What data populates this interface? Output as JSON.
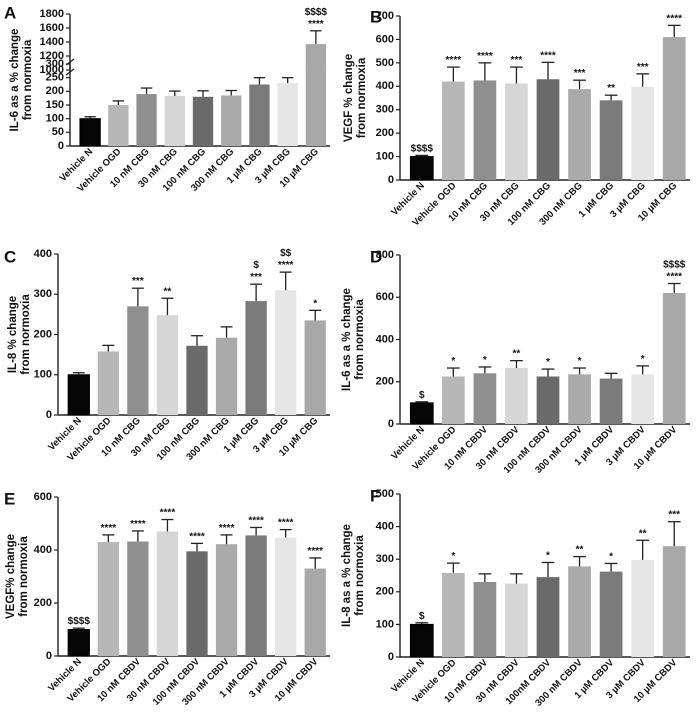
{
  "colors": {
    "Vehicle N": "#050505",
    "Vehicle OGD": "#b7b7b7",
    "10": "#8f8f8f",
    "30": "#d6d6d6",
    "100": "#6a6a6a",
    "300": "#aaaaaa",
    "1u": "#7a7a7a",
    "3u": "#e6e6e6",
    "10u": "#a8a8a8"
  },
  "chart_data": [
    {
      "panel": "A",
      "type": "bar",
      "ylabel_lines": [
        "IL-6 as a % change",
        "from normoxia"
      ],
      "categories": [
        "Vehicle N",
        "Vehicle OGD",
        "10 nM CBG",
        "30 nM CBG",
        "100 nM CBG",
        "300 nM CBG",
        "1 µM CBG",
        "3 µM CBG",
        "10 µM CBG"
      ],
      "values": [
        100,
        150,
        190,
        183,
        180,
        185,
        225,
        230,
        1370
      ],
      "errors": [
        7,
        15,
        22,
        18,
        22,
        18,
        25,
        20,
        190
      ],
      "sig_stars": [
        "",
        "",
        "",
        "",
        "",
        "",
        "",
        "",
        "****"
      ],
      "sig_dollars": [
        "",
        "",
        "",
        "",
        "",
        "",
        "",
        "",
        "$$$$"
      ],
      "ylim": [
        0,
        1800
      ],
      "yticks": [
        "0",
        "50",
        "100",
        "150",
        "200",
        "250",
        "300",
        "1000",
        "1200",
        "1400",
        "1600",
        "1800"
      ],
      "axis_break": true
    },
    {
      "panel": "B",
      "type": "bar",
      "ylabel_lines": [
        "VEGF % change",
        "from normoxia"
      ],
      "categories": [
        "Vehicle N",
        "Vehicle OGD",
        "10 nM CBG",
        "30 nM CBG",
        "100 nM CBG",
        "300 nM CBG",
        "1 µM CBG",
        "3 µM CBG",
        "10 µM CBG"
      ],
      "values": [
        100,
        420,
        425,
        412,
        430,
        388,
        340,
        398,
        610
      ],
      "errors": [
        5,
        62,
        75,
        70,
        72,
        38,
        22,
        55,
        50
      ],
      "sig_stars": [
        "",
        "****",
        "****",
        "***",
        "****",
        "***",
        "**",
        "***",
        "****"
      ],
      "sig_dollars": [
        "$$$$",
        "",
        "",
        "",
        "",
        "",
        "",
        "",
        ""
      ],
      "ylim": [
        0,
        700
      ],
      "yticks": [
        "0",
        "100",
        "200",
        "300",
        "400",
        "500",
        "600",
        "700"
      ]
    },
    {
      "panel": "C",
      "type": "bar",
      "ylabel_lines": [
        "IL-8 % change",
        "from normoxia"
      ],
      "categories": [
        "Vehicle N",
        "Vehicle OGD",
        "10 nM CBG",
        "30 nM CBG",
        "100 nM CBG",
        "300 nM CBG",
        "1 µM CBG",
        "3 µM CBG",
        "10 µM CBG"
      ],
      "values": [
        100,
        158,
        270,
        248,
        172,
        192,
        283,
        310,
        235
      ],
      "errors": [
        5,
        15,
        45,
        42,
        25,
        27,
        42,
        45,
        25
      ],
      "sig_stars": [
        "",
        "",
        "***",
        "**",
        "",
        "",
        "***",
        "****",
        "*"
      ],
      "sig_dollars": [
        "",
        "",
        "",
        "",
        "",
        "",
        "$",
        "$$",
        ""
      ],
      "ylim": [
        0,
        400
      ],
      "yticks": [
        "0",
        "100",
        "200",
        "300",
        "400"
      ]
    },
    {
      "panel": "D",
      "type": "bar",
      "ylabel_lines": [
        "IL-6 as a % change",
        "from normoxia"
      ],
      "categories": [
        "Vehicle N",
        "Vehicle OGD",
        "10 nM CBDV",
        "30 nM CBDV",
        "100 nM CBDV",
        "300 nM CBDV",
        "1 µM CBDV",
        "3 µM CBDV",
        "10 µM CBDV"
      ],
      "values": [
        100,
        225,
        240,
        265,
        225,
        235,
        215,
        235,
        620
      ],
      "errors": [
        5,
        40,
        30,
        35,
        35,
        30,
        25,
        40,
        45
      ],
      "sig_stars": [
        "",
        "*",
        "*",
        "**",
        "*",
        "*",
        "",
        "*",
        "****"
      ],
      "sig_dollars": [
        "$",
        "",
        "",
        "",
        "",
        "",
        "",
        "",
        "$$$$"
      ],
      "ylim": [
        0,
        800
      ],
      "yticks": [
        "0",
        "200",
        "400",
        "600",
        "800"
      ]
    },
    {
      "panel": "E",
      "type": "bar",
      "ylabel_lines": [
        "VEGF% change",
        "from normoxia"
      ],
      "categories": [
        "Vehicle N",
        "Vehicle OGD",
        "10 nM CBDV",
        "30 nM CBDV",
        "100 nM CBDV",
        "300 nM CBDV",
        "1 µM CBDV",
        "3 µM CBDV",
        "10 µM CBDV"
      ],
      "values": [
        100,
        430,
        432,
        470,
        395,
        422,
        455,
        447,
        330
      ],
      "errors": [
        5,
        27,
        40,
        45,
        30,
        35,
        30,
        30,
        40
      ],
      "sig_stars": [
        "",
        "****",
        "****",
        "****",
        "****",
        "****",
        "****",
        "****",
        "****"
      ],
      "sig_dollars": [
        "$$$$",
        "",
        "",
        "",
        "",
        "",
        "",
        "",
        ""
      ],
      "ylim": [
        0,
        600
      ],
      "yticks": [
        "0",
        "200",
        "400",
        "600"
      ]
    },
    {
      "panel": "F",
      "type": "bar",
      "ylabel_lines": [
        "IL-8 as a % change",
        "from normoxia"
      ],
      "categories": [
        "Vehicle N",
        "Vehicle OGD",
        "10 nM CBDV",
        "30 nM CBDV",
        "100nM CBDV",
        "300 nM CBDV",
        "1 µM CBDV",
        "3 µM CBDV",
        "10 µM CBDV"
      ],
      "values": [
        100,
        258,
        230,
        225,
        245,
        278,
        262,
        298,
        340
      ],
      "errors": [
        5,
        30,
        25,
        30,
        45,
        30,
        25,
        60,
        75
      ],
      "sig_stars": [
        "",
        "*",
        "",
        "",
        "*",
        "**",
        "*",
        "**",
        "***"
      ],
      "sig_dollars": [
        "$",
        "",
        "",
        "",
        "",
        "",
        "",
        "",
        ""
      ],
      "ylim": [
        0,
        500
      ],
      "yticks": [
        "0",
        "100",
        "200",
        "300",
        "400",
        "500"
      ]
    }
  ]
}
